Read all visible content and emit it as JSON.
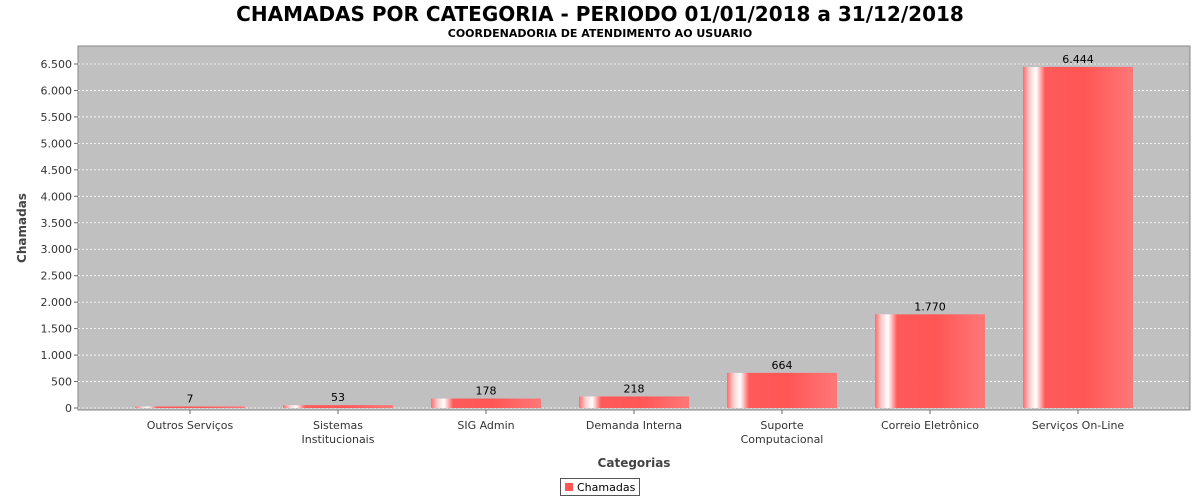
{
  "chart_data": {
    "type": "bar",
    "title": "CHAMADAS POR CATEGORIA - PERIODO 01/01/2018 a 31/12/2018",
    "subtitle": "COORDENADORIA DE ATENDIMENTO AO USUARIO",
    "xlabel": "Categorias",
    "ylabel": "Chamadas",
    "categories": [
      [
        "Outros Serviços"
      ],
      [
        "Sistemas",
        "Institucionais"
      ],
      [
        "SIG Admin"
      ],
      [
        "Demanda Interna"
      ],
      [
        "Suporte",
        "Computacional"
      ],
      [
        "Correio Eletrônico"
      ],
      [
        "Serviços On-Line"
      ]
    ],
    "series": [
      {
        "name": "Chamadas",
        "values": [
          7,
          53,
          178,
          218,
          664,
          1770,
          6444
        ],
        "value_labels": [
          "7",
          "53",
          "178",
          "218",
          "664",
          "1.770",
          "6.444"
        ]
      }
    ],
    "ylim": [
      0,
      6500
    ],
    "yticks": [
      0,
      500,
      1000,
      1500,
      2000,
      2500,
      3000,
      3500,
      4000,
      4500,
      5000,
      5500,
      6000,
      6500
    ],
    "ytick_labels": [
      "0",
      "500",
      "1.000",
      "1.500",
      "2.000",
      "2.500",
      "3.000",
      "3.500",
      "4.000",
      "4.500",
      "5.000",
      "5.500",
      "6.000",
      "6.500"
    ],
    "grid": true,
    "legend": "bottom-center",
    "colors": {
      "bar": "#ff5555",
      "plot_background": "#c0c0c0",
      "grid": "#ffffff"
    }
  }
}
